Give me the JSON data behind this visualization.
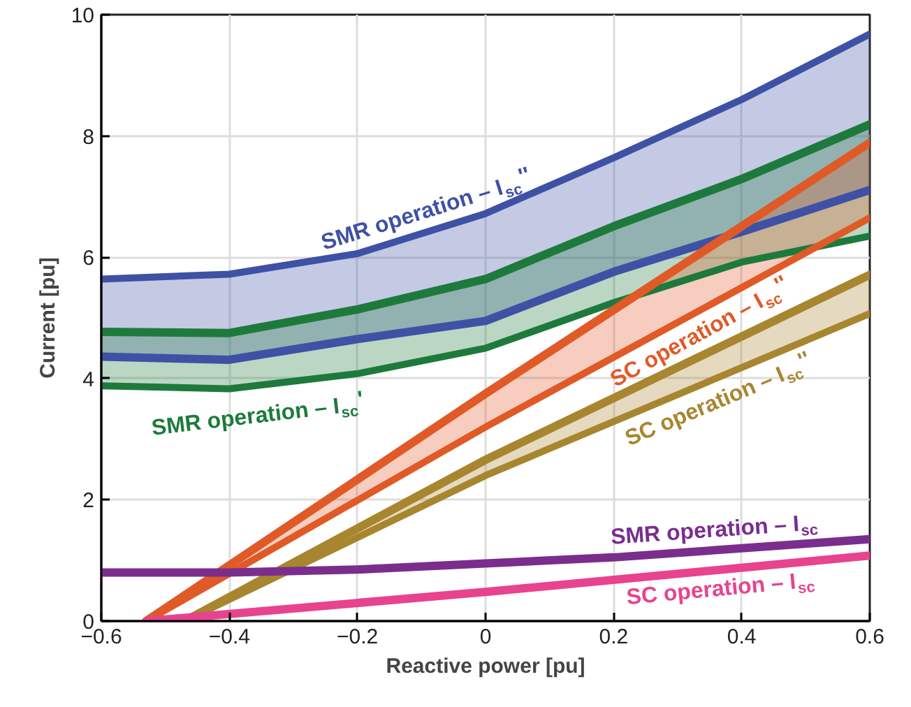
{
  "chart_data": {
    "type": "line",
    "xlabel": "Reactive power [pu]",
    "ylabel": "Current [pu]",
    "xlim": [
      -0.6,
      0.6
    ],
    "xticks": [
      -0.6,
      -0.4,
      -0.2,
      0,
      0.2,
      0.4,
      0.6
    ],
    "ylim": [
      0,
      10
    ],
    "yticks": [
      0,
      2,
      4,
      6,
      8,
      10
    ],
    "grid": true,
    "marker": "none",
    "line_style": "solid",
    "series": [
      {
        "name": "SMR operation – I$_{sc}$''",
        "color": "#3f51a5",
        "x": [
          -0.6,
          -0.4,
          -0.2,
          0,
          0.2,
          0.4,
          0.6
        ],
        "values": [
          5.64,
          5.72,
          6.06,
          6.72,
          7.64,
          8.6,
          9.68
        ],
        "lower": [
          4.36,
          4.31,
          4.65,
          4.95,
          5.76,
          6.42,
          7.11
        ],
        "upper": [
          5.64,
          5.72,
          6.06,
          6.72,
          7.64,
          8.6,
          9.68
        ]
      },
      {
        "color": "#3f51a5",
        "x": [
          -0.6,
          -0.4,
          -0.2,
          0,
          0.2,
          0.4,
          0.6
        ],
        "values": [
          4.36,
          4.31,
          4.65,
          4.95,
          5.76,
          6.42,
          7.11
        ]
      },
      {
        "color": "#1e7a3c",
        "x": [
          -0.6,
          -0.4,
          -0.2,
          0,
          0.2,
          0.4,
          0.6
        ],
        "values": [
          4.77,
          4.75,
          5.14,
          5.64,
          6.51,
          7.29,
          8.19
        ]
      },
      {
        "name": "SMR operation – I$_{sc}$'",
        "color": "#1e7a3c",
        "x": [
          -0.6,
          -0.4,
          -0.2,
          0,
          0.2,
          0.4,
          0.6
        ],
        "values": [
          3.88,
          3.83,
          4.08,
          4.5,
          5.25,
          5.92,
          6.35
        ],
        "lower": [
          3.88,
          3.83,
          4.08,
          4.5,
          5.25,
          5.92,
          6.35
        ],
        "upper": [
          4.77,
          4.75,
          5.14,
          5.64,
          6.51,
          7.29,
          8.19
        ]
      },
      {
        "color": "#e05a28",
        "x": [
          -0.53,
          0,
          0.6
        ],
        "values": [
          0,
          3.75,
          7.89
        ]
      },
      {
        "name": "SC operation – I$_{sc}$''",
        "color": "#e05a28",
        "x": [
          -0.53,
          0,
          0.6
        ],
        "values": [
          0,
          3.2,
          6.65
        ],
        "lower": [
          0,
          3.2,
          6.65
        ],
        "upper": [
          0,
          3.75,
          7.89
        ]
      },
      {
        "color": "#a8862f",
        "x": [
          -0.47,
          0,
          0.6
        ],
        "values": [
          0,
          2.66,
          5.71
        ]
      },
      {
        "name": "SC operation – I$_{sc}$''",
        "color": "#a8862f",
        "x": [
          -0.47,
          0,
          0.6
        ],
        "values": [
          0,
          2.4,
          5.07
        ],
        "lower": [
          0,
          2.4,
          5.07
        ],
        "upper": [
          0,
          2.66,
          5.71
        ]
      },
      {
        "name": "SMR operation – I$_{sc}$",
        "color": "#7b2d8e",
        "x": [
          -0.6,
          -0.4,
          -0.2,
          0,
          0.2,
          0.4,
          0.6
        ],
        "values": [
          0.8,
          0.8,
          0.85,
          0.95,
          1.05,
          1.2,
          1.35
        ]
      },
      {
        "name": "SC operation – I$_{sc}$",
        "color": "#e8438f",
        "x": [
          -0.53,
          0,
          0.6
        ],
        "values": [
          0,
          0.48,
          1.08
        ]
      }
    ]
  }
}
